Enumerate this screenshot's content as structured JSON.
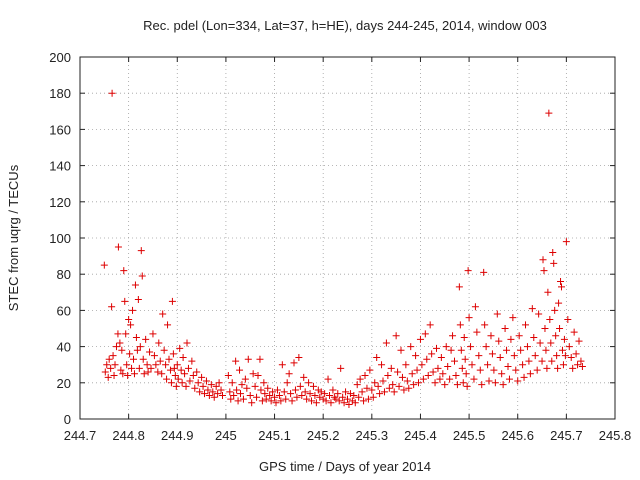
{
  "chart_data": {
    "type": "scatter",
    "title": "Rec. pdel (Lon=334, Lat=37, h=HE), days 244-245, 2014, window 003",
    "xlabel": "GPS time / Days of year 2014",
    "ylabel": "STEC from uqrg / TECUs",
    "xlim": [
      244.7,
      245.8
    ],
    "ylim": [
      0,
      200
    ],
    "xticks": [
      "244.7",
      "244.8",
      "244.9",
      "245",
      "245.1",
      "245.2",
      "245.3",
      "245.4",
      "245.5",
      "245.6",
      "245.7",
      "245.8"
    ],
    "yticks": [
      "0",
      "20",
      "40",
      "60",
      "80",
      "100",
      "120",
      "140",
      "160",
      "180",
      "200"
    ],
    "grid": true,
    "marker": "+",
    "color": "#dd0000",
    "points": [
      [
        244.75,
        85
      ],
      [
        244.752,
        26
      ],
      [
        244.755,
        30
      ],
      [
        244.758,
        23
      ],
      [
        244.76,
        33
      ],
      [
        244.763,
        28
      ],
      [
        244.765,
        62
      ],
      [
        244.766,
        180
      ],
      [
        244.768,
        35
      ],
      [
        244.77,
        24
      ],
      [
        244.772,
        30
      ],
      [
        244.775,
        40
      ],
      [
        244.778,
        47
      ],
      [
        244.779,
        95
      ],
      [
        244.782,
        42
      ],
      [
        244.784,
        27
      ],
      [
        244.786,
        38
      ],
      [
        244.788,
        25
      ],
      [
        244.79,
        82
      ],
      [
        244.792,
        65
      ],
      [
        244.794,
        47
      ],
      [
        244.796,
        30
      ],
      [
        244.798,
        24
      ],
      [
        244.8,
        55
      ],
      [
        244.802,
        36
      ],
      [
        244.804,
        52
      ],
      [
        244.806,
        28
      ],
      [
        244.808,
        60
      ],
      [
        244.81,
        33
      ],
      [
        244.812,
        25
      ],
      [
        244.814,
        74
      ],
      [
        244.816,
        45
      ],
      [
        244.818,
        38
      ],
      [
        244.82,
        66
      ],
      [
        244.822,
        28
      ],
      [
        244.824,
        40
      ],
      [
        244.826,
        93
      ],
      [
        244.828,
        79
      ],
      [
        244.83,
        33
      ],
      [
        244.832,
        25
      ],
      [
        244.835,
        44
      ],
      [
        244.838,
        30
      ],
      [
        244.84,
        26
      ],
      [
        244.843,
        37
      ],
      [
        244.846,
        28
      ],
      [
        244.85,
        47
      ],
      [
        244.853,
        35
      ],
      [
        244.856,
        30
      ],
      [
        244.86,
        26
      ],
      [
        244.862,
        42
      ],
      [
        244.865,
        32
      ],
      [
        244.868,
        25
      ],
      [
        244.87,
        58
      ],
      [
        244.873,
        38
      ],
      [
        244.876,
        30
      ],
      [
        244.878,
        22
      ],
      [
        244.88,
        52
      ],
      [
        244.883,
        33
      ],
      [
        244.886,
        27
      ],
      [
        244.888,
        20
      ],
      [
        244.89,
        65
      ],
      [
        244.892,
        36
      ],
      [
        244.894,
        28
      ],
      [
        244.896,
        24
      ],
      [
        244.898,
        18
      ],
      [
        244.9,
        30
      ],
      [
        244.902,
        22
      ],
      [
        244.905,
        39
      ],
      [
        244.908,
        27
      ],
      [
        244.91,
        20
      ],
      [
        244.912,
        34
      ],
      [
        244.915,
        25
      ],
      [
        244.918,
        18
      ],
      [
        244.92,
        42
      ],
      [
        244.923,
        28
      ],
      [
        244.926,
        21
      ],
      [
        244.93,
        32
      ],
      [
        244.933,
        24
      ],
      [
        244.936,
        17
      ],
      [
        244.94,
        26
      ],
      [
        244.943,
        20
      ],
      [
        244.946,
        15
      ],
      [
        244.95,
        23
      ],
      [
        244.953,
        18
      ],
      [
        244.956,
        14
      ],
      [
        244.96,
        21
      ],
      [
        244.963,
        16
      ],
      [
        244.966,
        13
      ],
      [
        244.97,
        19
      ],
      [
        244.973,
        15
      ],
      [
        244.976,
        12
      ],
      [
        244.98,
        18
      ],
      [
        244.983,
        14
      ],
      [
        244.986,
        20
      ],
      [
        244.99,
        16
      ],
      [
        244.993,
        13
      ],
      [
        245.005,
        24
      ],
      [
        245.008,
        15
      ],
      [
        245.01,
        11
      ],
      [
        245.013,
        20
      ],
      [
        245.016,
        13
      ],
      [
        245.02,
        32
      ],
      [
        245.022,
        16
      ],
      [
        245.025,
        10
      ],
      [
        245.028,
        27
      ],
      [
        245.03,
        14
      ],
      [
        245.033,
        19
      ],
      [
        245.036,
        11
      ],
      [
        245.04,
        22
      ],
      [
        245.043,
        17
      ],
      [
        245.046,
        33
      ],
      [
        245.05,
        13
      ],
      [
        245.053,
        9
      ],
      [
        245.056,
        25
      ],
      [
        245.06,
        18
      ],
      [
        245.063,
        12
      ],
      [
        245.066,
        24
      ],
      [
        245.07,
        33
      ],
      [
        245.072,
        16
      ],
      [
        245.075,
        10
      ],
      [
        245.078,
        20
      ],
      [
        245.08,
        14
      ],
      [
        245.083,
        11
      ],
      [
        245.086,
        17
      ],
      [
        245.09,
        13
      ],
      [
        245.093,
        10
      ],
      [
        245.096,
        15
      ],
      [
        245.1,
        12
      ],
      [
        245.103,
        9
      ],
      [
        245.106,
        16
      ],
      [
        245.11,
        13
      ],
      [
        245.113,
        10
      ],
      [
        245.116,
        30
      ],
      [
        245.12,
        15
      ],
      [
        245.123,
        11
      ],
      [
        245.126,
        20
      ],
      [
        245.13,
        25
      ],
      [
        245.133,
        14
      ],
      [
        245.136,
        10
      ],
      [
        245.14,
        31
      ],
      [
        245.143,
        16
      ],
      [
        245.146,
        12
      ],
      [
        245.15,
        34
      ],
      [
        245.153,
        18
      ],
      [
        245.156,
        13
      ],
      [
        245.16,
        23
      ],
      [
        245.163,
        15
      ],
      [
        245.166,
        11
      ],
      [
        245.17,
        20
      ],
      [
        245.173,
        14
      ],
      [
        245.176,
        10
      ],
      [
        245.18,
        18
      ],
      [
        245.183,
        13
      ],
      [
        245.186,
        9
      ],
      [
        245.19,
        16
      ],
      [
        245.193,
        12
      ],
      [
        245.196,
        15
      ],
      [
        245.2,
        11
      ],
      [
        245.203,
        14
      ],
      [
        245.206,
        10
      ],
      [
        245.21,
        22
      ],
      [
        245.213,
        13
      ],
      [
        245.216,
        9
      ],
      [
        245.22,
        16
      ],
      [
        245.223,
        12
      ],
      [
        245.226,
        11
      ],
      [
        245.23,
        14
      ],
      [
        245.233,
        10
      ],
      [
        245.236,
        28
      ],
      [
        245.24,
        12
      ],
      [
        245.243,
        9
      ],
      [
        245.246,
        15
      ],
      [
        245.25,
        11
      ],
      [
        245.253,
        8
      ],
      [
        245.256,
        14
      ],
      [
        245.26,
        10
      ],
      [
        245.263,
        13
      ],
      [
        245.266,
        9
      ],
      [
        245.27,
        19
      ],
      [
        245.273,
        12
      ],
      [
        245.276,
        22
      ],
      [
        245.28,
        15
      ],
      [
        245.283,
        10
      ],
      [
        245.286,
        24
      ],
      [
        245.29,
        17
      ],
      [
        245.293,
        11
      ],
      [
        245.296,
        27
      ],
      [
        245.3,
        16
      ],
      [
        245.303,
        12
      ],
      [
        245.306,
        20
      ],
      [
        245.31,
        34
      ],
      [
        245.313,
        18
      ],
      [
        245.316,
        14
      ],
      [
        245.32,
        30
      ],
      [
        245.323,
        21
      ],
      [
        245.326,
        15
      ],
      [
        245.33,
        42
      ],
      [
        245.333,
        24
      ],
      [
        245.336,
        17
      ],
      [
        245.34,
        28
      ],
      [
        245.343,
        19
      ],
      [
        245.346,
        15
      ],
      [
        245.35,
        46
      ],
      [
        245.353,
        26
      ],
      [
        245.356,
        18
      ],
      [
        245.36,
        38
      ],
      [
        245.363,
        23
      ],
      [
        245.366,
        16
      ],
      [
        245.37,
        30
      ],
      [
        245.373,
        21
      ],
      [
        245.376,
        17
      ],
      [
        245.38,
        40
      ],
      [
        245.383,
        25
      ],
      [
        245.386,
        19
      ],
      [
        245.39,
        35
      ],
      [
        245.393,
        27
      ],
      [
        245.396,
        20
      ],
      [
        245.4,
        44
      ],
      [
        245.403,
        30
      ],
      [
        245.406,
        22
      ],
      [
        245.41,
        47
      ],
      [
        245.413,
        33
      ],
      [
        245.416,
        24
      ],
      [
        245.42,
        52
      ],
      [
        245.423,
        36
      ],
      [
        245.426,
        26
      ],
      [
        245.43,
        20
      ],
      [
        245.433,
        39
      ],
      [
        245.436,
        28
      ],
      [
        245.44,
        22
      ],
      [
        245.443,
        34
      ],
      [
        245.446,
        25
      ],
      [
        245.45,
        19
      ],
      [
        245.453,
        40
      ],
      [
        245.456,
        29
      ],
      [
        245.46,
        22
      ],
      [
        245.463,
        38
      ],
      [
        245.466,
        46
      ],
      [
        245.47,
        32
      ],
      [
        245.473,
        24
      ],
      [
        245.476,
        19
      ],
      [
        245.48,
        73
      ],
      [
        245.482,
        52
      ],
      [
        245.484,
        38
      ],
      [
        245.486,
        28
      ],
      [
        245.488,
        20
      ],
      [
        245.49,
        45
      ],
      [
        245.492,
        33
      ],
      [
        245.494,
        25
      ],
      [
        245.496,
        18
      ],
      [
        245.498,
        82
      ],
      [
        245.5,
        56
      ],
      [
        245.503,
        40
      ],
      [
        245.506,
        30
      ],
      [
        245.51,
        22
      ],
      [
        245.513,
        62
      ],
      [
        245.516,
        48
      ],
      [
        245.52,
        35
      ],
      [
        245.523,
        27
      ],
      [
        245.526,
        19
      ],
      [
        245.53,
        81
      ],
      [
        245.532,
        52
      ],
      [
        245.535,
        40
      ],
      [
        245.538,
        30
      ],
      [
        245.541,
        21
      ],
      [
        245.545,
        46
      ],
      [
        245.548,
        36
      ],
      [
        245.551,
        27
      ],
      [
        245.554,
        20
      ],
      [
        245.558,
        58
      ],
      [
        245.561,
        43
      ],
      [
        245.564,
        34
      ],
      [
        245.567,
        25
      ],
      [
        245.57,
        19
      ],
      [
        245.574,
        50
      ],
      [
        245.577,
        38
      ],
      [
        245.58,
        29
      ],
      [
        245.583,
        22
      ],
      [
        245.586,
        44
      ],
      [
        245.59,
        56
      ],
      [
        245.593,
        35
      ],
      [
        245.596,
        27
      ],
      [
        245.6,
        21
      ],
      [
        245.603,
        46
      ],
      [
        245.606,
        38
      ],
      [
        245.61,
        30
      ],
      [
        245.613,
        23
      ],
      [
        245.616,
        52
      ],
      [
        245.62,
        40
      ],
      [
        245.623,
        32
      ],
      [
        245.626,
        25
      ],
      [
        245.63,
        61
      ],
      [
        245.633,
        45
      ],
      [
        245.636,
        35
      ],
      [
        245.64,
        27
      ],
      [
        245.643,
        58
      ],
      [
        245.646,
        42
      ],
      [
        245.65,
        32
      ],
      [
        245.652,
        88
      ],
      [
        245.654,
        82
      ],
      [
        245.656,
        50
      ],
      [
        245.658,
        38
      ],
      [
        245.66,
        28
      ],
      [
        245.662,
        70
      ],
      [
        245.664,
        169
      ],
      [
        245.666,
        55
      ],
      [
        245.668,
        42
      ],
      [
        245.67,
        32
      ],
      [
        245.672,
        92
      ],
      [
        245.674,
        86
      ],
      [
        245.676,
        60
      ],
      [
        245.678,
        46
      ],
      [
        245.68,
        35
      ],
      [
        245.682,
        28
      ],
      [
        245.684,
        64
      ],
      [
        245.686,
        50
      ],
      [
        245.688,
        76
      ],
      [
        245.69,
        73
      ],
      [
        245.692,
        38
      ],
      [
        245.694,
        30
      ],
      [
        245.696,
        44
      ],
      [
        245.698,
        35
      ],
      [
        245.7,
        98
      ],
      [
        245.703,
        55
      ],
      [
        245.706,
        40
      ],
      [
        245.71,
        34
      ],
      [
        245.713,
        28
      ],
      [
        245.716,
        48
      ],
      [
        245.72,
        36
      ],
      [
        245.723,
        30
      ],
      [
        245.726,
        43
      ],
      [
        245.73,
        32
      ],
      [
        245.733,
        29
      ]
    ]
  }
}
